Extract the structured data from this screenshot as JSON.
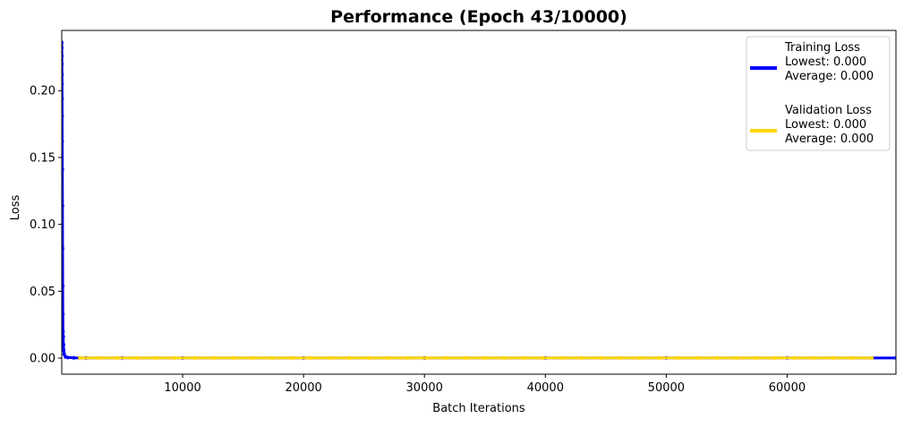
{
  "chart_data": {
    "type": "line",
    "title": "Performance (Epoch 43/10000)",
    "xlabel": "Batch Iterations",
    "ylabel": "Loss",
    "xlim": [
      0,
      69000
    ],
    "ylim": [
      -0.012,
      0.245
    ],
    "x_ticks": [
      10000,
      20000,
      30000,
      40000,
      50000,
      60000
    ],
    "x_tick_labels": [
      "10000",
      "20000",
      "30000",
      "40000",
      "50000",
      "60000"
    ],
    "y_ticks": [
      0.0,
      0.05,
      0.1,
      0.15,
      0.2
    ],
    "y_tick_labels": [
      "0.00",
      "0.05",
      "0.10",
      "0.15",
      "0.20"
    ],
    "grid": false,
    "legend_position": "top-right",
    "series": [
      {
        "name": "Training Loss",
        "color": "#0000ff",
        "legend_lines": [
          "Training Loss",
          "Lowest: 0.000",
          "Average: 0.000"
        ],
        "x": [
          1,
          5,
          10,
          15,
          20,
          25,
          30,
          35,
          40,
          50,
          60,
          70,
          80,
          90,
          100,
          120,
          140,
          160,
          200,
          300,
          500,
          1000,
          2000,
          5000,
          10000,
          20000,
          30000,
          40000,
          50000,
          60000,
          69000
        ],
        "y": [
          0.236,
          0.232,
          0.226,
          0.22,
          0.212,
          0.205,
          0.194,
          0.181,
          0.162,
          0.141,
          0.114,
          0.082,
          0.054,
          0.033,
          0.02,
          0.016,
          0.01,
          0.006,
          0.003,
          0.001,
          0.0005,
          0.0002,
          0.0001,
          0.0001,
          0.0001,
          0.0001,
          0.0001,
          0.0001,
          0.0001,
          0.0001,
          0.0001
        ]
      },
      {
        "name": "Validation Loss",
        "color": "#ffd700",
        "legend_lines": [
          "Validation Loss",
          "Lowest: 0.000",
          "Average: 0.000"
        ],
        "x": [
          1500,
          3000,
          4600,
          6200,
          7800,
          9400,
          11000,
          12600,
          14200,
          15800,
          17400,
          19000,
          20600,
          22200,
          23800,
          25400,
          27000,
          28600,
          30200,
          31800,
          33400,
          35000,
          36600,
          38200,
          39800,
          41400,
          43000,
          44600,
          46200,
          47800,
          49400,
          51000,
          52600,
          54200,
          55800,
          57400,
          59000,
          60600,
          62200,
          63800,
          65400,
          67000
        ],
        "y": [
          0.0001,
          0.0001,
          0.0001,
          0.0001,
          0.0001,
          0.0001,
          0.0001,
          0.0001,
          0.0001,
          0.0001,
          0.0001,
          0.0001,
          0.0001,
          0.0001,
          0.0001,
          0.0001,
          0.0001,
          0.0001,
          0.0001,
          0.0001,
          0.0001,
          0.0001,
          0.0001,
          0.0001,
          0.0001,
          0.0001,
          0.0001,
          0.0001,
          0.0001,
          0.0001,
          0.0001,
          0.0001,
          0.0001,
          0.0001,
          0.0001,
          0.0001,
          0.0001,
          0.0001,
          0.0001,
          0.0001,
          0.0001,
          0.0001
        ]
      }
    ]
  }
}
